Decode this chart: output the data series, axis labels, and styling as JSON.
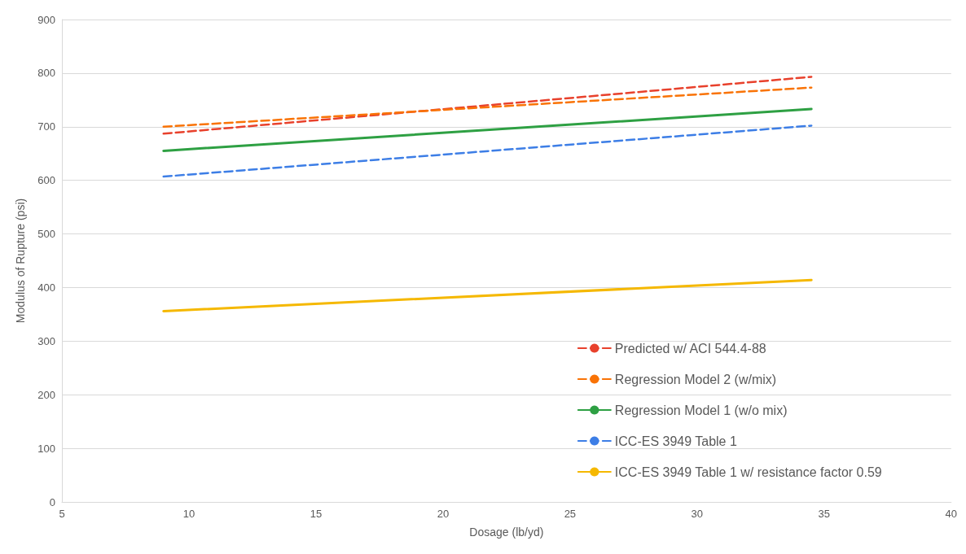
{
  "chart_data": {
    "type": "line",
    "xlabel": "Dosage (lb/yd)",
    "ylabel": "Modulus of Rupture (psi)",
    "x": [
      9,
      34.5
    ],
    "series": [
      {
        "name": "Predicted w/ ACI 544.4-88",
        "color": "#e8412c",
        "values": [
          687,
          793
        ],
        "line_style": "dashed"
      },
      {
        "name": "Regression Model 2 (w/mix)",
        "color": "#f97306",
        "values": [
          700,
          773
        ],
        "line_style": "dashed"
      },
      {
        "name": "Regression Model 1 (w/o mix)",
        "color": "#2ea043",
        "values": [
          655,
          733
        ],
        "line_style": "solid"
      },
      {
        "name": "ICC-ES 3949 Table 1",
        "color": "#3d7ee6",
        "values": [
          607,
          702
        ],
        "line_style": "dashed"
      },
      {
        "name": "ICC-ES 3949 Table 1 w/ resistance factor 0.59",
        "color": "#f5b800",
        "values": [
          356,
          414
        ],
        "line_style": "solid"
      }
    ],
    "xlim": [
      5,
      40
    ],
    "xticks": [
      5,
      10,
      15,
      20,
      25,
      30,
      35,
      40
    ],
    "ylim": [
      0,
      900
    ],
    "yticks": [
      0,
      100,
      200,
      300,
      400,
      500,
      600,
      700,
      800,
      900
    ],
    "grid": "y",
    "legend": "bottom right",
    "marker": "none"
  }
}
